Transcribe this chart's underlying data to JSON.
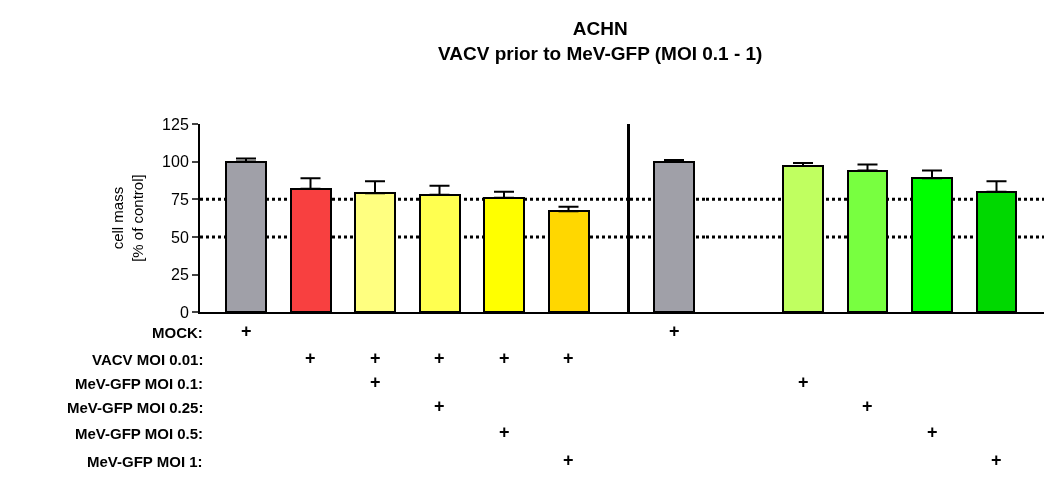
{
  "chart_data": [
    {
      "type": "bar",
      "title": "ACHN",
      "subtitle": "VACV prior to MeV-GFP (MOI 0.1 - 1)",
      "ylabel": "cell mass\n[% of control]",
      "categories": [
        null,
        null,
        null,
        null,
        null,
        null
      ],
      "values": [
        100,
        82,
        79,
        78,
        76,
        67
      ],
      "colors": [
        "#a0a0a8",
        "#f84040",
        "#ffff80",
        "#ffff50",
        "#ffff00",
        "#ffd700"
      ],
      "errors": [
        [
          100,
          102
        ],
        [
          82,
          89
        ],
        [
          79,
          87
        ],
        [
          78,
          84
        ],
        [
          76,
          80
        ],
        [
          67,
          70
        ]
      ],
      "ylim": [
        0,
        125
      ],
      "yticks": [
        0,
        25,
        50,
        75,
        100,
        125
      ],
      "grid": false,
      "tick_labels": "y",
      "ref_lines": [
        {
          "axis": "y",
          "value": 50,
          "line_style": "dotted"
        },
        {
          "axis": "y",
          "value": 75,
          "line_style": "dotted"
        }
      ]
    },
    {
      "type": "bar",
      "categories": [
        null
      ],
      "values": [
        100
      ],
      "colors": [
        "#a0a0a8"
      ],
      "errors": [
        [
          100,
          101
        ]
      ],
      "ylim": [
        0,
        125
      ],
      "grid": false,
      "tick_labels": false,
      "ref_lines": [
        {
          "axis": "y",
          "value": 50,
          "line_style": "dotted"
        },
        {
          "axis": "y",
          "value": 75,
          "line_style": "dotted"
        }
      ]
    },
    {
      "type": "bar",
      "categories": [
        null,
        null,
        null,
        null
      ],
      "values": [
        97,
        94,
        89,
        80
      ],
      "colors": [
        "#c0ff60",
        "#78ff40",
        "#00ff00",
        "#00d800"
      ],
      "errors": [
        [
          97,
          99
        ],
        [
          94,
          98
        ],
        [
          89,
          94
        ],
        [
          80,
          87
        ]
      ],
      "ylim": [
        0,
        125
      ],
      "grid": false,
      "tick_labels": false,
      "ref_lines": [
        {
          "axis": "y",
          "value": 50,
          "line_style": "dotted"
        },
        {
          "axis": "y",
          "value": 75,
          "line_style": "dotted"
        }
      ]
    },
    {
      "type": "other",
      "categories": [
        null,
        null,
        null,
        null,
        null,
        null,
        null,
        null,
        null,
        null,
        null
      ],
      "y_categories": [
        "MOCK:",
        "VACV MOI 0.01:",
        "MeV-GFP MOI 0.1:",
        "MeV-GFP MOI 0.25:",
        "MeV-GFP MOI 0.5:",
        "MeV-GFP MOI 1:"
      ],
      "cell_labels": [
        [
          "+",
          null,
          null,
          null,
          null,
          null,
          "+",
          null,
          null,
          null,
          null
        ],
        [
          null,
          "+",
          "+",
          "+",
          "+",
          "+",
          null,
          null,
          null,
          null,
          null
        ],
        [
          null,
          null,
          "+",
          null,
          null,
          null,
          null,
          "+",
          null,
          null,
          null
        ],
        [
          null,
          null,
          null,
          "+",
          null,
          null,
          null,
          null,
          "+",
          null,
          null
        ],
        [
          null,
          null,
          null,
          null,
          "+",
          null,
          null,
          null,
          null,
          "+",
          null
        ],
        [
          null,
          null,
          null,
          null,
          null,
          "+",
          null,
          null,
          null,
          null,
          "+"
        ]
      ]
    }
  ]
}
